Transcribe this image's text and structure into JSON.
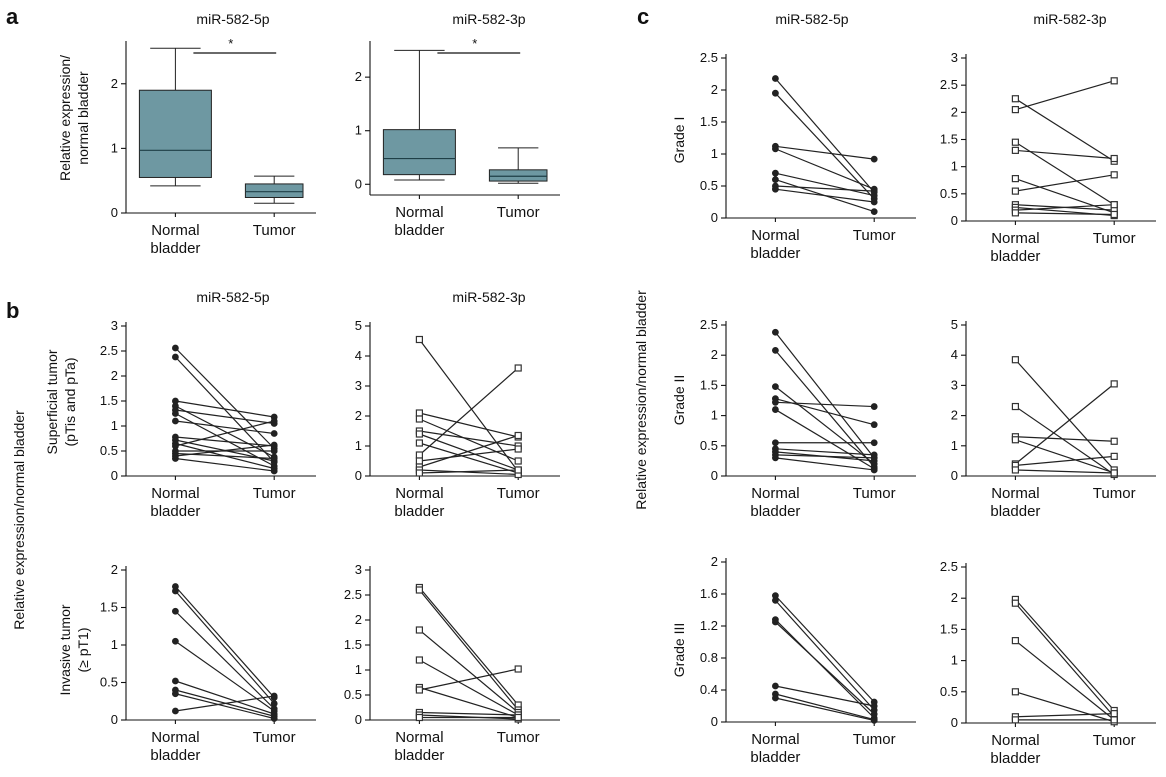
{
  "panel_letters": {
    "a": "a",
    "b": "b",
    "c": "c"
  },
  "titles": {
    "a_5p": "miR-582-5p",
    "a_3p": "miR-582-3p",
    "b_5p": "miR-582-5p",
    "b_3p": "miR-582-3p",
    "c_5p": "miR-582-5p",
    "c_3p": "miR-582-3p"
  },
  "ylabels": {
    "a": [
      "Relative expression/",
      "normal bladder"
    ],
    "b_shared": "Relative expression/normal bladder",
    "b_superficial": [
      "Superficial tumor",
      "(pTis and pTa)"
    ],
    "b_invasive": [
      "Invasive tumor",
      "(≥ pT1)"
    ],
    "c_shared": "Relative expression/normal bladder",
    "c_grade1": "Grade I",
    "c_grade2": "Grade II",
    "c_grade3": "Grade III"
  },
  "categories": {
    "normal_line1": "Normal",
    "normal_line2": "bladder",
    "tumor": "Tumor"
  },
  "significance": "*",
  "colors": {
    "box_fill": "#6e98a2",
    "line": "#222222"
  },
  "chart_data": [
    {
      "id": "a1",
      "type": "box",
      "title": "miR-582-5p",
      "categories": [
        "Normal bladder",
        "Tumor"
      ],
      "ylim": [
        0,
        2.6
      ],
      "yticks": [
        0,
        1,
        2
      ],
      "boxes": [
        {
          "min": 0.42,
          "q1": 0.55,
          "median": 0.97,
          "q3": 1.9,
          "max": 2.55
        },
        {
          "min": 0.15,
          "q1": 0.24,
          "median": 0.33,
          "q3": 0.45,
          "max": 0.57
        }
      ],
      "significance": "*"
    },
    {
      "id": "a2",
      "type": "box",
      "title": "miR-582-3p",
      "categories": [
        "Normal bladder",
        "Tumor"
      ],
      "ylim": [
        -0.2,
        2.6
      ],
      "yticks": [
        0,
        1,
        2
      ],
      "boxes": [
        {
          "min": 0.08,
          "q1": 0.18,
          "median": 0.48,
          "q3": 1.02,
          "max": 2.5
        },
        {
          "min": 0.02,
          "q1": 0.06,
          "median": 0.15,
          "q3": 0.27,
          "max": 0.68
        }
      ],
      "significance": "*"
    },
    {
      "id": "b1",
      "type": "paired",
      "title": "miR-582-5p",
      "ylabel": "Superficial tumor (pTis and pTa)",
      "marker": "circle",
      "categories": [
        "Normal bladder",
        "Tumor"
      ],
      "ylim": [
        0,
        3
      ],
      "yticks": [
        0,
        0.5,
        1,
        1.5,
        2,
        2.5,
        3
      ],
      "pairs": [
        [
          2.56,
          0.55
        ],
        [
          2.38,
          0.28
        ],
        [
          1.5,
          1.18
        ],
        [
          1.4,
          0.38
        ],
        [
          1.32,
          1.05
        ],
        [
          1.25,
          0.2
        ],
        [
          1.1,
          0.85
        ],
        [
          0.78,
          0.6
        ],
        [
          0.72,
          0.3
        ],
        [
          0.65,
          0.15
        ],
        [
          0.6,
          1.1
        ],
        [
          0.5,
          0.5
        ],
        [
          0.45,
          0.35
        ],
        [
          0.4,
          0.62
        ],
        [
          0.35,
          0.1
        ]
      ]
    },
    {
      "id": "b2",
      "type": "paired",
      "title": "miR-582-3p",
      "marker": "square",
      "categories": [
        "Normal bladder",
        "Tumor"
      ],
      "ylim": [
        0,
        5
      ],
      "yticks": [
        0,
        1,
        2,
        3,
        4,
        5
      ],
      "pairs": [
        [
          4.55,
          0.15
        ],
        [
          2.1,
          1.3
        ],
        [
          1.9,
          0.5
        ],
        [
          1.5,
          1.0
        ],
        [
          1.4,
          0.2
        ],
        [
          1.1,
          0.1
        ],
        [
          0.7,
          3.6
        ],
        [
          0.5,
          0.9
        ],
        [
          0.3,
          1.35
        ],
        [
          0.2,
          0.05
        ],
        [
          0.1,
          0.2
        ]
      ]
    },
    {
      "id": "b3",
      "type": "paired",
      "ylabel": "Invasive tumor (≥ pT1)",
      "marker": "circle",
      "categories": [
        "Normal bladder",
        "Tumor"
      ],
      "ylim": [
        0,
        2
      ],
      "yticks": [
        0,
        0.5,
        1,
        1.5,
        2
      ],
      "pairs": [
        [
          1.78,
          0.3
        ],
        [
          1.72,
          0.22
        ],
        [
          1.45,
          0.15
        ],
        [
          1.05,
          0.12
        ],
        [
          0.52,
          0.08
        ],
        [
          0.4,
          0.05
        ],
        [
          0.35,
          0.02
        ],
        [
          0.12,
          0.32
        ]
      ]
    },
    {
      "id": "b4",
      "type": "paired",
      "marker": "square",
      "categories": [
        "Normal bladder",
        "Tumor"
      ],
      "ylim": [
        0,
        3
      ],
      "yticks": [
        0,
        0.5,
        1,
        1.5,
        2,
        2.5,
        3
      ],
      "pairs": [
        [
          2.65,
          0.3
        ],
        [
          2.6,
          0.2
        ],
        [
          1.8,
          0.15
        ],
        [
          1.2,
          0.1
        ],
        [
          0.65,
          0.05
        ],
        [
          0.6,
          1.02
        ],
        [
          0.15,
          0.1
        ],
        [
          0.1,
          0.02
        ],
        [
          0.05,
          0.05
        ]
      ]
    },
    {
      "id": "c1",
      "type": "paired",
      "title": "miR-582-5p",
      "ylabel": "Grade I",
      "marker": "circle",
      "categories": [
        "Normal bladder",
        "Tumor"
      ],
      "ylim": [
        0,
        2.5
      ],
      "yticks": [
        0,
        0.5,
        1,
        1.5,
        2,
        2.5
      ],
      "pairs": [
        [
          2.18,
          0.4
        ],
        [
          1.95,
          0.3
        ],
        [
          1.12,
          0.92
        ],
        [
          1.08,
          0.45
        ],
        [
          0.7,
          0.35
        ],
        [
          0.6,
          0.1
        ],
        [
          0.5,
          0.42
        ],
        [
          0.45,
          0.25
        ]
      ]
    },
    {
      "id": "c2",
      "type": "paired",
      "title": "miR-582-3p",
      "marker": "square",
      "categories": [
        "Normal bladder",
        "Tumor"
      ],
      "ylim": [
        0,
        3
      ],
      "yticks": [
        0,
        0.5,
        1,
        1.5,
        2,
        2.5,
        3
      ],
      "pairs": [
        [
          2.25,
          1.1
        ],
        [
          2.05,
          2.58
        ],
        [
          1.45,
          0.3
        ],
        [
          1.3,
          1.15
        ],
        [
          0.78,
          0.15
        ],
        [
          0.55,
          0.85
        ],
        [
          0.3,
          0.2
        ],
        [
          0.25,
          0.1
        ],
        [
          0.2,
          0.3
        ],
        [
          0.15,
          0.12
        ]
      ]
    },
    {
      "id": "c3",
      "type": "paired",
      "ylabel": "Grade II",
      "marker": "circle",
      "categories": [
        "Normal bladder",
        "Tumor"
      ],
      "ylim": [
        0,
        2.5
      ],
      "yticks": [
        0,
        0.5,
        1,
        1.5,
        2,
        2.5
      ],
      "pairs": [
        [
          2.38,
          0.3
        ],
        [
          2.08,
          0.15
        ],
        [
          1.48,
          0.2
        ],
        [
          1.28,
          0.85
        ],
        [
          1.22,
          1.15
        ],
        [
          1.1,
          0.12
        ],
        [
          0.55,
          0.55
        ],
        [
          0.45,
          0.35
        ],
        [
          0.4,
          0.25
        ],
        [
          0.35,
          0.3
        ],
        [
          0.3,
          0.1
        ]
      ]
    },
    {
      "id": "c4",
      "type": "paired",
      "marker": "square",
      "categories": [
        "Normal bladder",
        "Tumor"
      ],
      "ylim": [
        0,
        5
      ],
      "yticks": [
        0,
        1,
        2,
        3,
        4,
        5
      ],
      "pairs": [
        [
          3.85,
          0.2
        ],
        [
          2.3,
          0.05
        ],
        [
          1.3,
          1.15
        ],
        [
          1.2,
          0.1
        ],
        [
          0.4,
          3.05
        ],
        [
          0.35,
          0.65
        ],
        [
          0.2,
          0.1
        ]
      ]
    },
    {
      "id": "c5",
      "type": "paired",
      "ylabel": "Grade III",
      "marker": "circle",
      "categories": [
        "Normal bladder",
        "Tumor"
      ],
      "ylim": [
        0,
        2
      ],
      "yticks": [
        0,
        0.4,
        0.8,
        1.2,
        1.6,
        2
      ],
      "ytick_labels": [
        "0",
        "0.4",
        "0.8",
        "1.2",
        "1.6",
        "2"
      ],
      "pairs": [
        [
          1.58,
          0.25
        ],
        [
          1.52,
          0.15
        ],
        [
          1.28,
          0.05
        ],
        [
          1.25,
          0.1
        ],
        [
          0.45,
          0.2
        ],
        [
          0.35,
          0.03
        ],
        [
          0.3,
          0.02
        ]
      ]
    },
    {
      "id": "c6",
      "type": "paired",
      "marker": "square",
      "categories": [
        "Normal bladder",
        "Tumor"
      ],
      "ylim": [
        0,
        2.5
      ],
      "yticks": [
        0,
        0.5,
        1,
        1.5,
        2,
        2.5
      ],
      "pairs": [
        [
          1.98,
          0.2
        ],
        [
          1.92,
          0.1
        ],
        [
          1.32,
          0.05
        ],
        [
          0.5,
          0.02
        ],
        [
          0.1,
          0.15
        ],
        [
          0.05,
          0.05
        ]
      ]
    }
  ]
}
